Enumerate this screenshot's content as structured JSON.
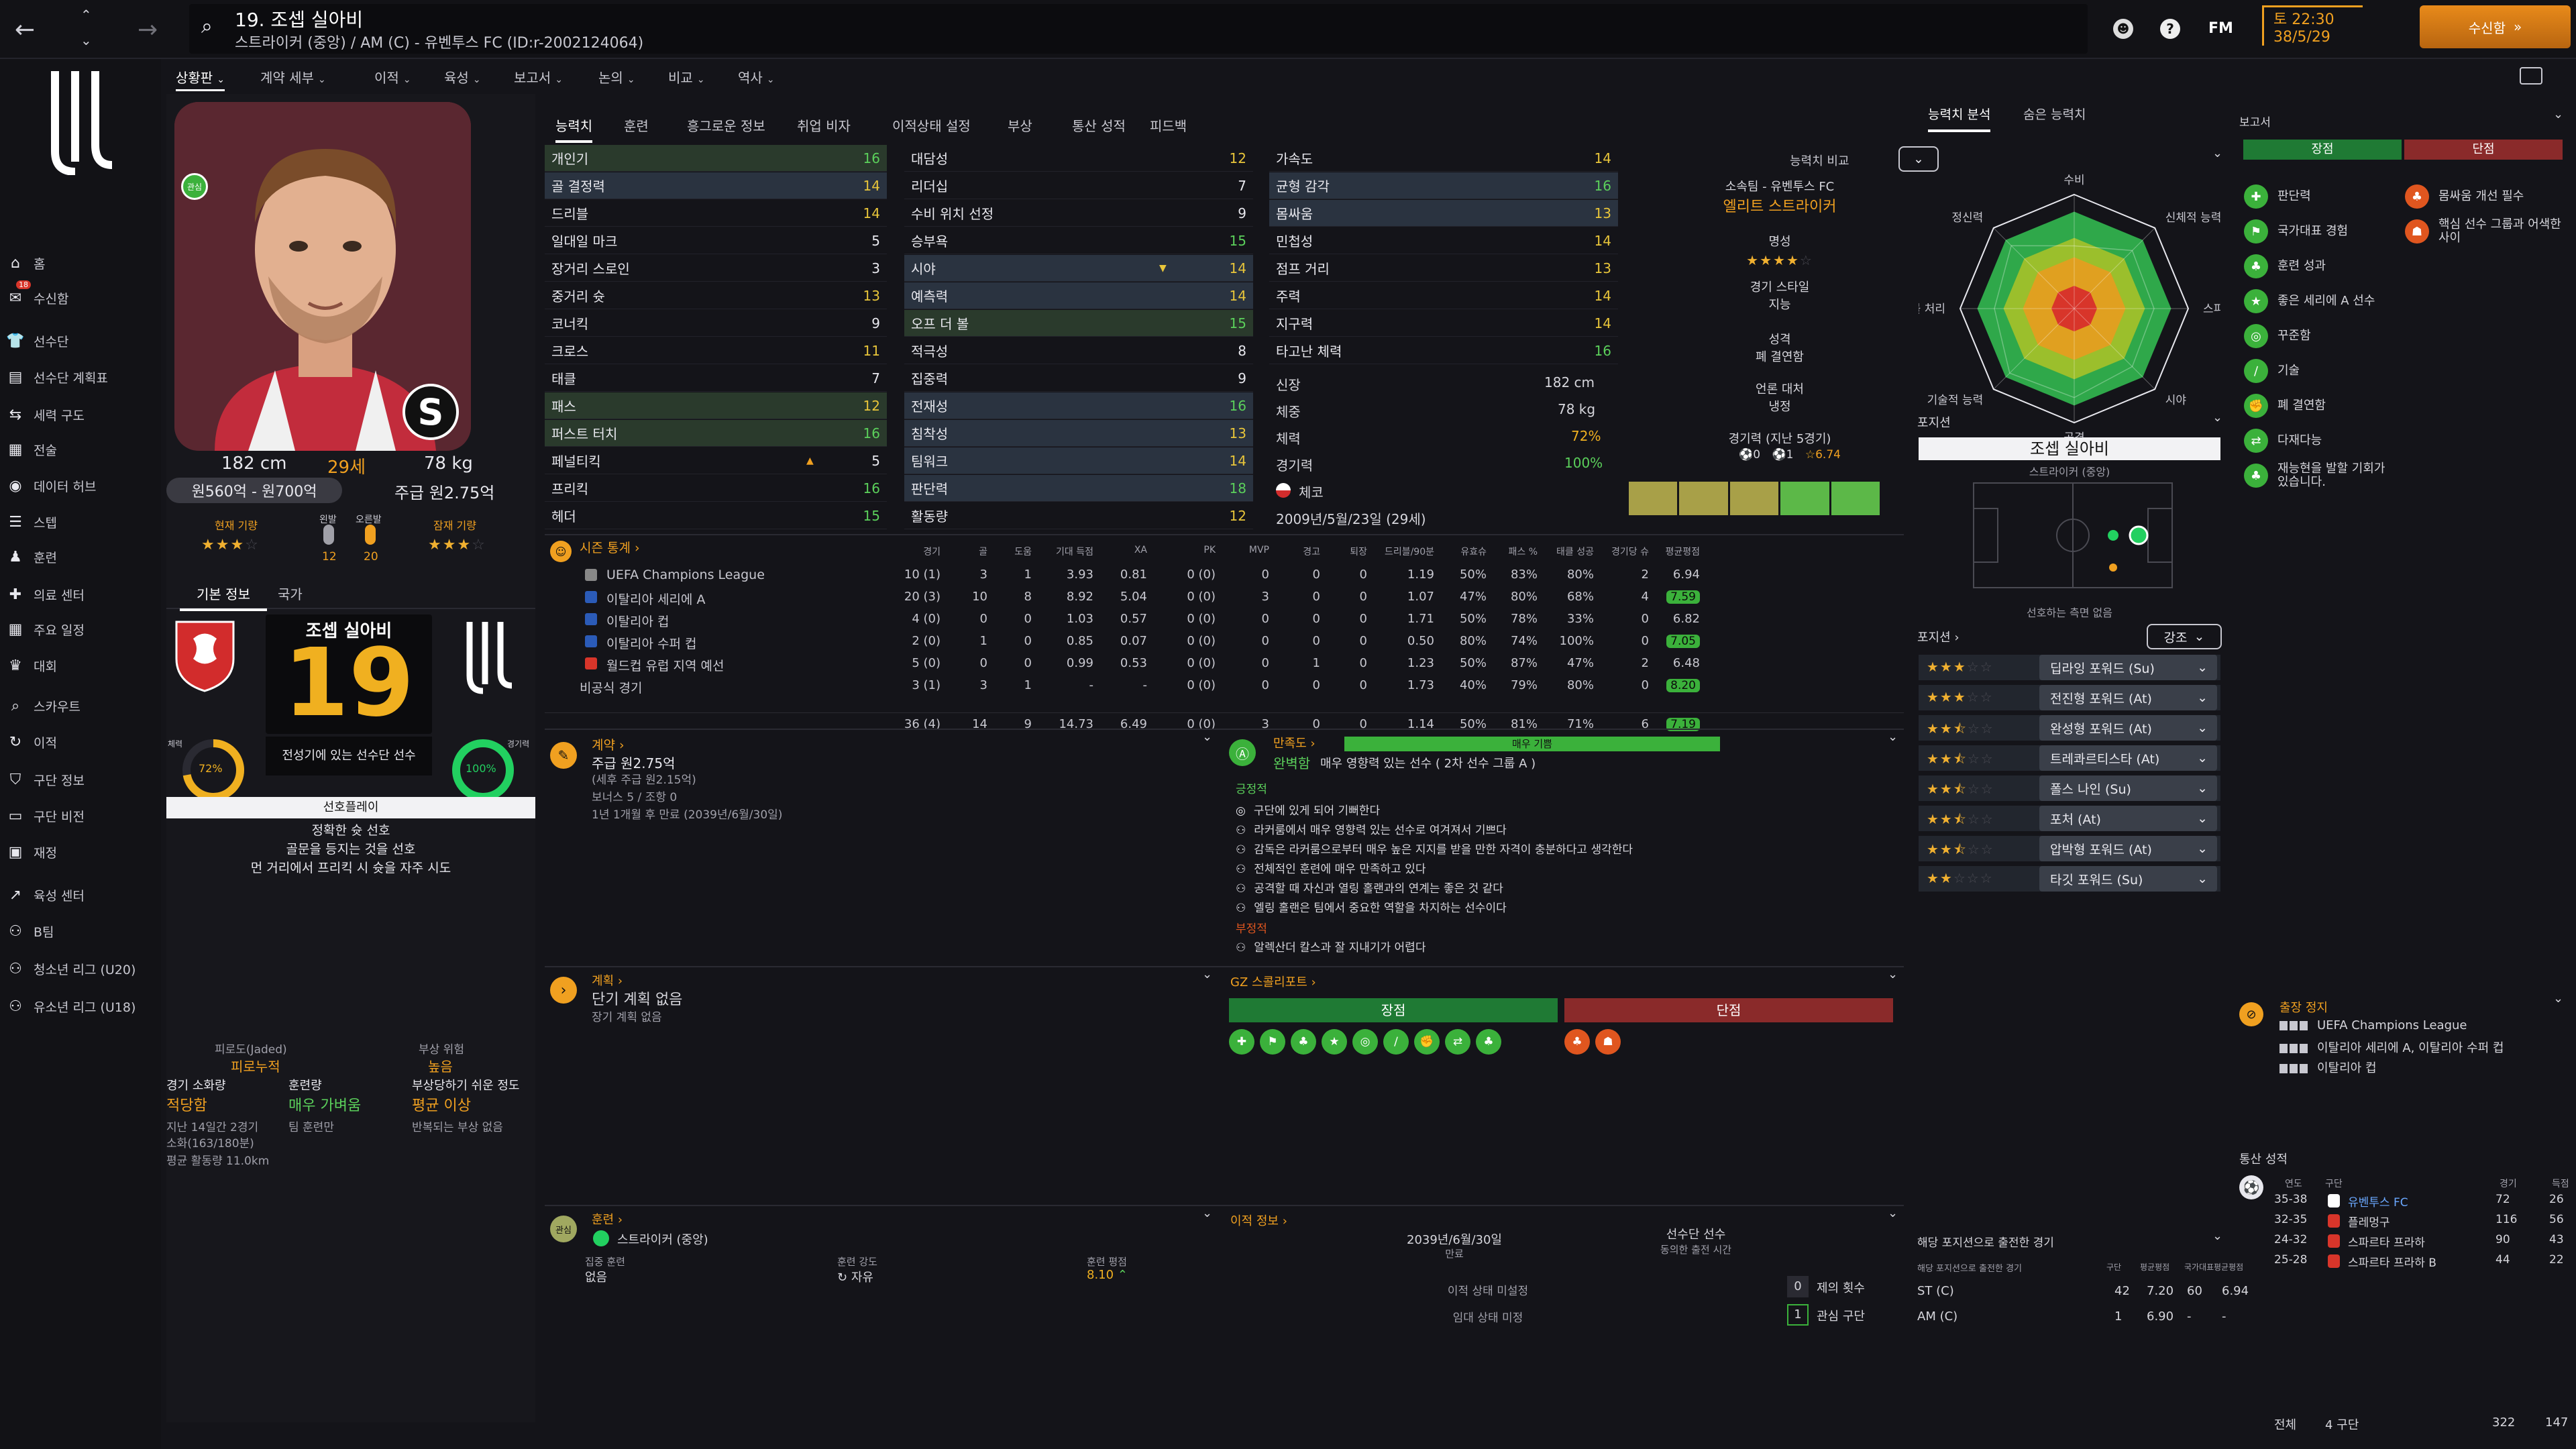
{
  "topbar": {
    "title": "19. 조셉 실아비",
    "subtitle": "스트라이커 (중앙) / AM (C) - 유벤투스 FC (ID:r-2002124064)",
    "date": "토 22:30",
    "date2": "38/5/29",
    "inbox_label": "수신함",
    "fm_label": "FM"
  },
  "subnav": [
    "상황판",
    "계약 세부",
    "이적",
    "육성",
    "보고서",
    "논의",
    "비교",
    "역사"
  ],
  "sidebar": [
    {
      "label": "홈",
      "icon": "home-icon"
    },
    {
      "label": "수신함",
      "icon": "inbox-icon"
    },
    {
      "label": "선수단",
      "icon": "squad-icon"
    },
    {
      "label": "선수단 계획표",
      "icon": "planner-icon"
    },
    {
      "label": "세력 구도",
      "icon": "dynamics-icon"
    },
    {
      "label": "전술",
      "icon": "tactics-icon"
    },
    {
      "label": "데이터 허브",
      "icon": "data-icon"
    },
    {
      "label": "스텝",
      "icon": "staff-icon"
    },
    {
      "label": "훈련",
      "icon": "training-icon"
    },
    {
      "label": "의료 센터",
      "icon": "medical-icon"
    },
    {
      "label": "주요 일정",
      "icon": "calendar-icon"
    },
    {
      "label": "대회",
      "icon": "trophy-icon"
    },
    {
      "label": "스카우트",
      "icon": "scout-icon"
    },
    {
      "label": "이적",
      "icon": "transfer-icon"
    },
    {
      "label": "구단 정보",
      "icon": "club-icon"
    },
    {
      "label": "구단 비전",
      "icon": "vision-icon"
    },
    {
      "label": "재정",
      "icon": "finance-icon"
    },
    {
      "label": "육성 센터",
      "icon": "dev-icon"
    },
    {
      "label": "B팀",
      "icon": "bteam-icon"
    },
    {
      "label": "청소년 리그 (U20)",
      "icon": "u20-icon"
    },
    {
      "label": "유소년 리그 (U18)",
      "icon": "u18-icon"
    }
  ],
  "inbox_badge": "18",
  "profile": {
    "height": "182 cm",
    "age": "29세",
    "weight": "78 kg",
    "value": "원560억 - 원700억",
    "wage": "주급 원2.75억",
    "current_ability": "현재 기량",
    "left_foot": "왼발",
    "right_foot": "오른발",
    "left_val": "12",
    "right_val": "20",
    "potential": "잠재 기량"
  },
  "info_tabs": [
    "기본 정보",
    "국가"
  ],
  "card": {
    "name": "조셉 실아비",
    "number": "19",
    "status": "전성기에 있는 선수단 선수",
    "fitness_label": "체력",
    "fitness": "72%",
    "sharp_label": "경기력",
    "sharp": "100%"
  },
  "playstyle": {
    "header": "선호플레이",
    "lines": [
      "정확한 슛 선호",
      "골문을 등지는 것을 선호",
      "먼 거리에서 프리킥 시 슛을 자주 시도"
    ]
  },
  "condition": {
    "fatigue_label": "피로도(Jaded)",
    "fatigue_val": "피로누적",
    "injury_label": "부상 위험",
    "injury_val": "높음",
    "match_load_label": "경기 소화량",
    "match_load": "적당함",
    "training_label": "훈련량",
    "training": "매우 가벼움",
    "inj_prone_label": "부상당하기 쉬운 정도",
    "inj_prone": "평균 이상",
    "last_14": "지난 14일간 2경기",
    "mins": "소화(163/180분)",
    "team_rec": "팀 훈련만",
    "recurring": "반복되는 부상 없음",
    "avg_dist": "평균 활동량 11.0km"
  },
  "attr_tabs": [
    "능력치",
    "훈련",
    "흥그로운 정보",
    "취업 비자",
    "이적상태 설정",
    "부상",
    "통산 성적",
    "피드백"
  ],
  "attrs_col1": [
    {
      "n": "개인기",
      "v": "16"
    },
    {
      "n": "골 결정력",
      "v": "14"
    },
    {
      "n": "드리블",
      "v": "14"
    },
    {
      "n": "일대일 마크",
      "v": "5"
    },
    {
      "n": "장거리 스로인",
      "v": "3"
    },
    {
      "n": "중거리 슛",
      "v": "13"
    },
    {
      "n": "코너킥",
      "v": "9"
    },
    {
      "n": "크로스",
      "v": "11"
    },
    {
      "n": "태클",
      "v": "7"
    },
    {
      "n": "패스",
      "v": "12"
    },
    {
      "n": "퍼스트 터치",
      "v": "16"
    },
    {
      "n": "페널티킥",
      "v": "5"
    },
    {
      "n": "프리킥",
      "v": "16"
    },
    {
      "n": "헤더",
      "v": "15"
    }
  ],
  "attrs_col2": [
    {
      "n": "대담성",
      "v": "12"
    },
    {
      "n": "리더십",
      "v": "7"
    },
    {
      "n": "수비 위치 선정",
      "v": "9"
    },
    {
      "n": "승부욕",
      "v": "15"
    },
    {
      "n": "시야",
      "v": "14"
    },
    {
      "n": "예측력",
      "v": "14"
    },
    {
      "n": "오프 더 볼",
      "v": "15"
    },
    {
      "n": "적극성",
      "v": "8"
    },
    {
      "n": "집중력",
      "v": "9"
    },
    {
      "n": "전재성",
      "v": "16"
    },
    {
      "n": "침착성",
      "v": "13"
    },
    {
      "n": "팀워크",
      "v": "14"
    },
    {
      "n": "판단력",
      "v": "18"
    },
    {
      "n": "활동량",
      "v": "12"
    }
  ],
  "attrs_col3": [
    {
      "n": "가속도",
      "v": "14"
    },
    {
      "n": "균형 감각",
      "v": "16"
    },
    {
      "n": "몸싸움",
      "v": "13"
    },
    {
      "n": "민첩성",
      "v": "14"
    },
    {
      "n": "점프 거리",
      "v": "13"
    },
    {
      "n": "주력",
      "v": "14"
    },
    {
      "n": "지구력",
      "v": "14"
    },
    {
      "n": "타고난 체력",
      "v": "16"
    }
  ],
  "phys": {
    "h_label": "신장",
    "h": "182 cm",
    "w_label": "체중",
    "w": "78 kg",
    "f_label": "체력",
    "f": "72%",
    "s_label": "경기력",
    "s": "100%",
    "nation": "체코",
    "dob": "2009년/5월/23일 (29세)"
  },
  "compare": {
    "label": "능력치 비교",
    "club": "소속팀 - 유벤투스 FC",
    "role": "엘리트 스트라이커",
    "rep_label": "명성",
    "style_label": "경기 스타일",
    "style": "지능",
    "pers_label": "성격",
    "pers": "폐 결연함",
    "media_label": "언론 대처",
    "media": "냉정",
    "form_label": "경기력 (지난 5경기)",
    "form_avg": "6.74",
    "form_goals": "0",
    "form_assists": "1"
  },
  "season": {
    "title": "시즌 통계",
    "headers": [
      "경기",
      "골",
      "도움",
      "기대 득점",
      "XA",
      "PK",
      "MVP",
      "경고",
      "퇴장",
      "드리블/90분",
      "유효슈",
      "패스 %",
      "태클 성공",
      "경기당 슈",
      "평균평점"
    ],
    "rows": [
      {
        "c": "UEFA Champions League",
        "v": [
          "10 (1)",
          "3",
          "1",
          "3.93",
          "0.81",
          "0 (0)",
          "0",
          "0",
          "0",
          "1.19",
          "50%",
          "83%",
          "80%",
          "2",
          "6.94"
        ]
      },
      {
        "c": "이탈리아 세리에 A",
        "v": [
          "20 (3)",
          "10",
          "8",
          "8.92",
          "5.04",
          "0 (0)",
          "3",
          "0",
          "0",
          "1.07",
          "47%",
          "80%",
          "68%",
          "4",
          "7.59"
        ]
      },
      {
        "c": "이탈리아 컵",
        "v": [
          "4 (0)",
          "0",
          "0",
          "1.03",
          "0.57",
          "0 (0)",
          "0",
          "0",
          "0",
          "1.71",
          "50%",
          "78%",
          "33%",
          "0",
          "6.82"
        ]
      },
      {
        "c": "이탈리아 수퍼 컵",
        "v": [
          "2 (0)",
          "1",
          "0",
          "0.85",
          "0.07",
          "0 (0)",
          "0",
          "0",
          "0",
          "0.50",
          "80%",
          "74%",
          "100%",
          "0",
          "7.05"
        ]
      },
      {
        "c": "월드컵 유럽 지역 예선",
        "v": [
          "5 (0)",
          "0",
          "0",
          "0.99",
          "0.53",
          "0 (0)",
          "0",
          "1",
          "0",
          "1.23",
          "50%",
          "87%",
          "47%",
          "2",
          "6.48"
        ]
      },
      {
        "c": "비공식 경기",
        "v": [
          "3 (1)",
          "3",
          "1",
          "-",
          "-",
          "0 (0)",
          "0",
          "0",
          "0",
          "1.73",
          "40%",
          "79%",
          "80%",
          "0",
          "8.20"
        ]
      }
    ],
    "total": [
      "36 (4)",
      "14",
      "9",
      "14.73",
      "6.49",
      "0 (0)",
      "3",
      "0",
      "0",
      "1.14",
      "50%",
      "81%",
      "71%",
      "6",
      "7.19"
    ]
  },
  "contract": {
    "title": "계약",
    "wage": "주급 원2.75억",
    "wage_sub": "(세후 주급 원2.15억)",
    "bonus": "보너스 5 / 조항 0",
    "expiry": "1년 1개월 후 만료 (2039년/6월/30일)"
  },
  "happiness": {
    "title": "만족도",
    "level": "매우 기쁨",
    "rating": "완벽함",
    "desc": "매우 영향력 있는 선수 ( 2차 선수 그룹 A )",
    "pos_label": "긍정적",
    "pos": [
      "구단에 있게 되어 기뻐한다",
      "라커룸에서 매우 영향력 있는 선수로 여겨져서 기쁘다",
      "감독은 라커룸으로부터 매우 높은 지지를 받을 만한 자격이 충분하다고 생각한다",
      "전체적인 훈련에 매우 만족하고 있다",
      "공격할 때 자신과 열링 홀랜과의 연계는 좋은 것 같다",
      "엘링 홀랜은 팀에서 중요한 역할을 차지하는 선수이다"
    ],
    "neg_label": "부정적",
    "neg": [
      "알렉산더 칼스과 잘 지내기가 어렵다"
    ]
  },
  "plans": {
    "title": "계획",
    "none": "단기 계획 없음",
    "long": "장기 계획 없음"
  },
  "scout": {
    "title": "GZ 스콜리포트",
    "pros": "장점",
    "cons": "단점"
  },
  "training": {
    "title": "훈련",
    "role": "스트라이커 (중앙)",
    "focus_label": "집중 훈련",
    "focus": "없음",
    "intensity_label": "훈련 강도",
    "intensity": "자유",
    "rating_label": "훈련 평점",
    "rating": "8.10"
  },
  "transfer": {
    "title": "이적 정보",
    "date": "2039년/6월/30일",
    "date_label": "만료",
    "role": "선수단 선수",
    "role_label": "동의한 출전 시간",
    "status1": "이적 상태 미설정",
    "status2": "임대 상태 미정",
    "offers": "제의 횟수",
    "offers_n": "0",
    "interest": "관심 구단",
    "interest_n": "1"
  },
  "ability_tabs": [
    "능력치 분석",
    "숨은 능력치"
  ],
  "radar": {
    "labels": [
      "수비",
      "신체적 능력",
      "스피드",
      "시야",
      "공격",
      "기술적 능력",
      "공중볼 처리",
      "정신력"
    ],
    "values": [
      0.55,
      0.72,
      0.7,
      0.72,
      0.78,
      0.8,
      0.7,
      0.78
    ]
  },
  "position": {
    "header": "포지션",
    "name": "조셉 실아비",
    "role": "스트라이커 (중앙)",
    "footnote": "선호하는 측면 없음"
  },
  "roles": {
    "header": "포지션",
    "filter": "강조",
    "items": [
      {
        "s": 3,
        "n": "딥라잉 포워드 (Su)"
      },
      {
        "s": 3,
        "n": "전진형 포워드 (At)"
      },
      {
        "s": 2.5,
        "n": "완성형 포워드 (At)"
      },
      {
        "s": 2.5,
        "n": "트레콰르티스타 (At)"
      },
      {
        "s": 2.5,
        "n": "폴스 나인 (Su)"
      },
      {
        "s": 2.5,
        "n": "포처 (At)"
      },
      {
        "s": 2.5,
        "n": "압박형 포워드 (At)"
      },
      {
        "s": 2,
        "n": "타깃 포워드 (Su)"
      }
    ]
  },
  "pos_exp": {
    "title": "해당 포지션으로 출전한 경기",
    "sub": "해당 포지션으로 출전한 경기",
    "cols": [
      "구단",
      "평균평점",
      "국가대표",
      "평균평점"
    ],
    "rows": [
      {
        "p": "ST (C)",
        "v": [
          "42",
          "7.20",
          "60",
          "6.94"
        ]
      },
      {
        "p": "AM (C)",
        "v": [
          "1",
          "6.90",
          "-",
          "-"
        ]
      }
    ]
  },
  "report": {
    "title": "보고서",
    "pros": "장점",
    "cons": "단점",
    "pro_items": [
      "판단력",
      "국가대표 경험",
      "훈련 성과",
      "좋은 세리에 A 선수",
      "꾸준함",
      "기술",
      "폐 결연함",
      "다재다능",
      "재능현을 발할 기회가 있습니다."
    ],
    "con_items": [
      "몸싸움 개선 필수",
      "핵심 선수 그룹과 어색한 사이"
    ]
  },
  "suspension": {
    "title": "출장 정지",
    "items": [
      "UEFA Champions League",
      "이탈리아 세리에 A, 이탈리아 수퍼 컵",
      "이탈리아 컵"
    ]
  },
  "career": {
    "title": "통산 성적",
    "cols": [
      "연도",
      "구단",
      "경기",
      "득점"
    ],
    "rows": [
      {
        "y": "35-38",
        "c": "유벤투스 FC",
        "g": "72",
        "s": "26"
      },
      {
        "y": "32-35",
        "c": "플레멍구",
        "g": "116",
        "s": "56"
      },
      {
        "y": "24-32",
        "c": "스파르타 프라하",
        "g": "90",
        "s": "43"
      },
      {
        "y": "25-28",
        "c": "스파르타 프라하 B",
        "g": "44",
        "s": "22"
      }
    ],
    "total_label": "전체",
    "total_clubs": "4 구단",
    "total_games": "322",
    "total_goals": "147"
  },
  "colors": {
    "accent": "#f0a020",
    "green": "#3bb13b",
    "red": "#d8352a"
  }
}
